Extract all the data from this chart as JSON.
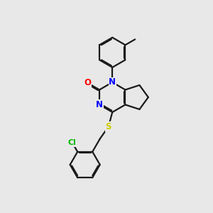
{
  "background_color": "#e8e8e8",
  "bond_color": "#1a1a1a",
  "atom_colors": {
    "N": "#0000ff",
    "O": "#ff0000",
    "S": "#cccc00",
    "Cl": "#00bb00",
    "C": "#1a1a1a"
  },
  "font_size_atoms": 8.5,
  "line_width": 1.6
}
